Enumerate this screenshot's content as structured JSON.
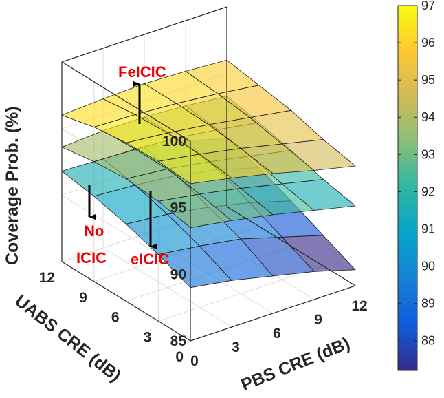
{
  "chart_data": {
    "type": "surface3d",
    "xlabel": "PBS CRE (dB)",
    "ylabel": "UABS CRE (dB)",
    "zlabel": "Coverage Prob. (%)",
    "x": [
      0,
      3,
      6,
      9,
      12
    ],
    "y": [
      0,
      3,
      6,
      9,
      12
    ],
    "x_ticks": [
      "0",
      "3",
      "6",
      "9",
      "12"
    ],
    "y_ticks": [
      "0",
      "3",
      "6",
      "9",
      "12"
    ],
    "z_ticks": [
      "85",
      "90",
      "95",
      "100"
    ],
    "zlim": [
      85,
      100
    ],
    "colorbar": {
      "range": [
        87.2,
        97.0
      ],
      "ticks": [
        "88",
        "89",
        "90",
        "91",
        "92",
        "93",
        "94",
        "95",
        "96",
        "97"
      ],
      "colormap": "parula"
    },
    "series": [
      {
        "name": "FeICIC",
        "z": [
          [
            96.8,
            96.2,
            95.5,
            94.7,
            94.0
          ],
          [
            97.0,
            96.5,
            95.9,
            95.2,
            94.5
          ],
          [
            96.9,
            96.6,
            96.2,
            95.7,
            95.2
          ],
          [
            96.6,
            96.5,
            96.3,
            96.0,
            95.6
          ],
          [
            96.0,
            96.2,
            96.3,
            96.2,
            96.0
          ]
        ]
      },
      {
        "name": "eICIC",
        "z": [
          [
            93.5,
            93.0,
            92.4,
            91.7,
            91.0
          ],
          [
            94.0,
            93.5,
            92.9,
            92.2,
            91.5
          ],
          [
            94.2,
            93.9,
            93.4,
            92.8,
            92.2
          ],
          [
            94.0,
            93.9,
            93.7,
            93.3,
            92.8
          ],
          [
            93.6,
            93.8,
            93.8,
            93.6,
            93.3
          ]
        ]
      },
      {
        "name": "No ICIC",
        "z": [
          [
            89.0,
            88.5,
            87.8,
            87.1,
            86.2
          ],
          [
            90.0,
            89.6,
            89.1,
            88.2,
            87.3
          ],
          [
            90.8,
            90.5,
            90.0,
            89.3,
            88.4
          ],
          [
            91.4,
            91.2,
            90.9,
            90.3,
            89.4
          ],
          [
            91.8,
            91.7,
            91.5,
            91.0,
            90.1
          ]
        ]
      }
    ],
    "annotations": [
      {
        "text": "FeICIC",
        "series": "FeICIC",
        "arrow": "up"
      },
      {
        "text": "eICIC",
        "series": "eICIC",
        "arrow": "down"
      },
      {
        "text": "No",
        "series": "No ICIC",
        "arrow": "down"
      },
      {
        "text": "ICIC",
        "series": "No ICIC",
        "arrow": "down"
      }
    ]
  }
}
